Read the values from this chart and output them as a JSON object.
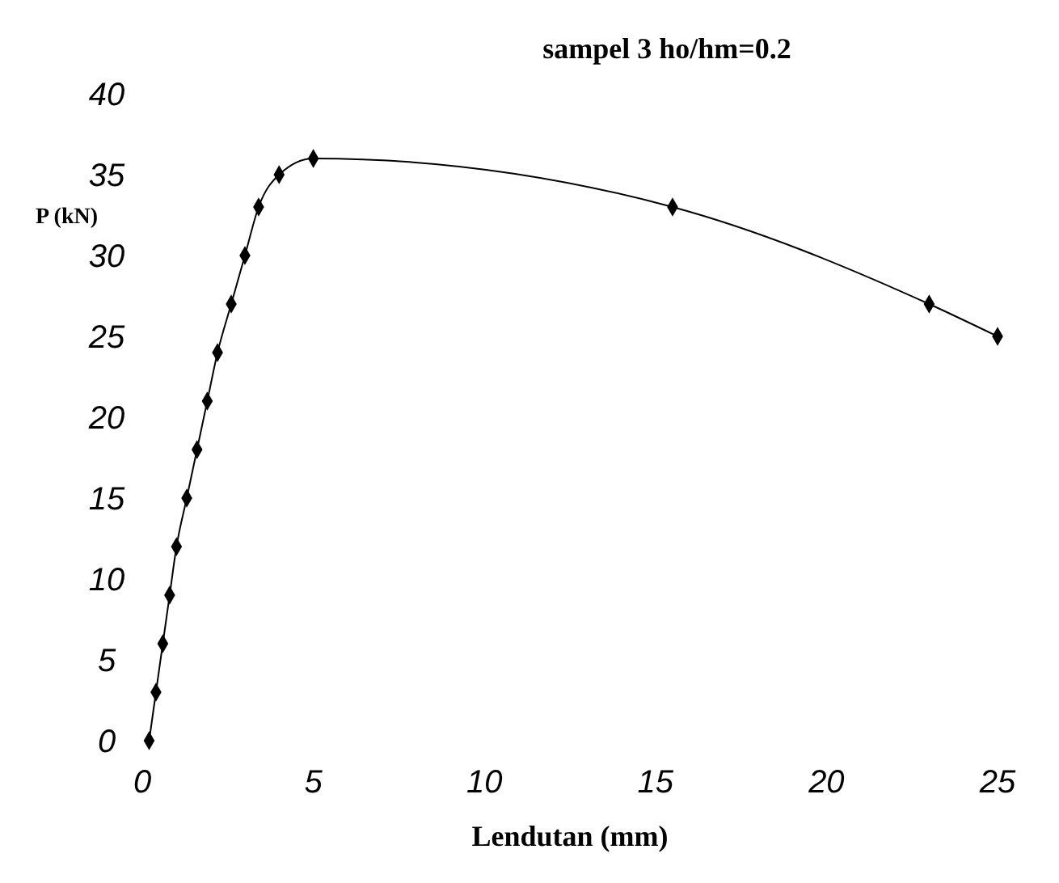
{
  "chart_data": {
    "type": "line",
    "title": "sampel 3 ho/hm=0.2",
    "xlabel": "Lendutan (mm)",
    "ylabel": "P (kN)",
    "x": [
      0.2,
      0.4,
      0.6,
      0.8,
      1.0,
      1.3,
      1.6,
      1.9,
      2.2,
      2.6,
      3.0,
      3.4,
      4.0,
      5.0,
      15.5,
      23,
      25
    ],
    "series": [
      {
        "color": "#000000",
        "values": [
          0,
          3,
          6,
          9,
          12,
          15,
          18,
          21,
          24,
          27,
          30,
          33,
          35,
          36,
          33,
          27,
          25
        ]
      }
    ],
    "xlim": [
      0,
      25
    ],
    "ylim": [
      0,
      40
    ],
    "xticks": [
      0,
      5,
      10,
      15,
      20,
      25
    ],
    "yticks": [
      0,
      5,
      10,
      15,
      20,
      25,
      30,
      35,
      40
    ],
    "marker": "diamond",
    "line_style": "solid"
  }
}
